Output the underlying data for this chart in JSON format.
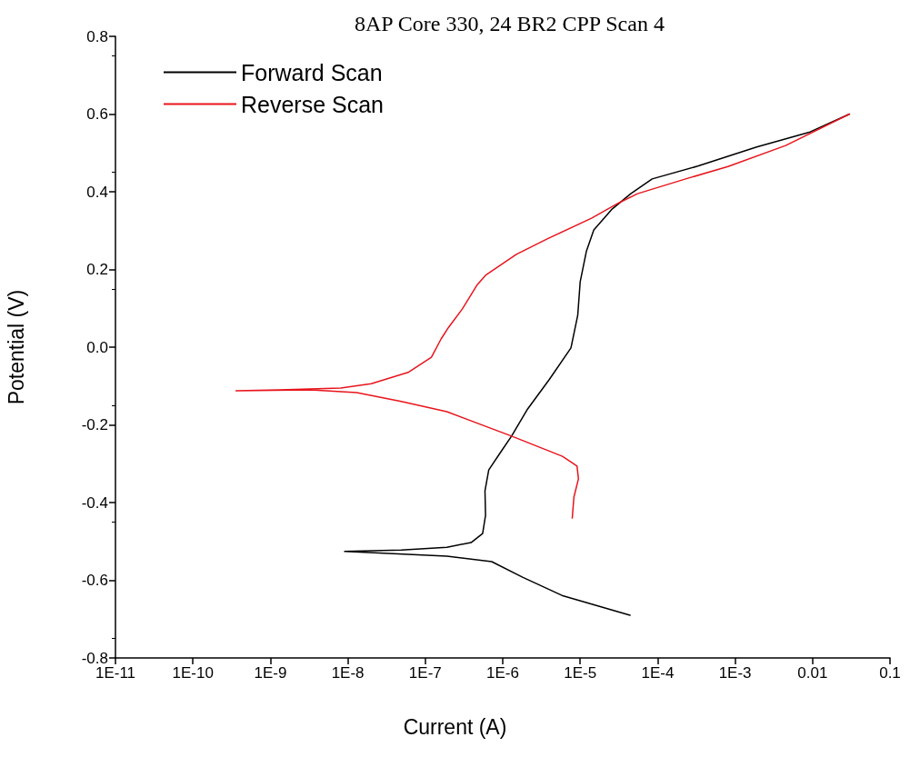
{
  "chart_data": {
    "type": "line",
    "title": "8AP Core 330, 24 BR2 CPP Scan 4",
    "xlabel": "Current (A)",
    "ylabel": "Potential (V)",
    "log": "x",
    "grid": false,
    "legend": "top left",
    "marker": "none",
    "line_style": "solid",
    "xlim": [
      1e-11,
      0.1
    ],
    "xticks": [
      {
        "value": 1e-11,
        "label": "1E-11"
      },
      {
        "value": 1e-10,
        "label": "1E-10"
      },
      {
        "value": 1e-09,
        "label": "1E-9"
      },
      {
        "value": 1e-08,
        "label": "1E-8"
      },
      {
        "value": 1e-07,
        "label": "1E-7"
      },
      {
        "value": 1e-06,
        "label": "1E-6"
      },
      {
        "value": 1e-05,
        "label": "1E-5"
      },
      {
        "value": 0.0001,
        "label": "1E-4"
      },
      {
        "value": 0.001,
        "label": "1E-3"
      },
      {
        "value": 0.01,
        "label": "0.01"
      },
      {
        "value": 0.1,
        "label": "0.1"
      }
    ],
    "ylim": [
      -0.8,
      0.8
    ],
    "yticks": [
      -0.8,
      -0.6,
      -0.4,
      -0.2,
      {
        "value": 0,
        "label": "0.0"
      },
      0.2,
      0.4,
      0.6,
      0.8
    ],
    "series": [
      {
        "name": "Forward Scan",
        "color": "#000000",
        "x": [
          4.4e-05,
          5.8e-06,
          1.8e-06,
          7.2e-07,
          1.9e-07,
          9.1e-09,
          4.9e-08,
          1.9e-07,
          3.9e-07,
          5.5e-07,
          6e-07,
          5.9e-07,
          6.6e-07,
          9.5e-07,
          1.3e-06,
          2.1e-06,
          4e-06,
          7.6e-06,
          9.3e-06,
          1e-05,
          1.2e-05,
          1.5e-05,
          2.6e-05,
          4.5e-05,
          8.5e-05,
          0.00033,
          0.0019,
          0.0093,
          0.03
        ],
        "values": [
          -0.69,
          -0.639,
          -0.592,
          -0.552,
          -0.538,
          -0.526,
          -0.522,
          -0.515,
          -0.503,
          -0.48,
          -0.433,
          -0.37,
          -0.316,
          -0.269,
          -0.229,
          -0.159,
          -0.083,
          -0.002,
          0.082,
          0.168,
          0.246,
          0.302,
          0.356,
          0.395,
          0.433,
          0.466,
          0.515,
          0.554,
          0.6
        ]
      },
      {
        "name": "Reverse Scan",
        "color": "#e8141c",
        "x": [
          0.03,
          0.0045,
          0.00081,
          0.00023,
          5.5e-05,
          3.2e-05,
          1.4e-05,
          3.7e-06,
          1.5e-06,
          6e-07,
          4.7e-07,
          3e-07,
          2e-07,
          1.6e-07,
          1.2e-07,
          6e-08,
          2e-08,
          8.1e-09,
          1.3e-09,
          3.6e-10,
          3.3e-09,
          1.3e-08,
          4.9e-08,
          1.9e-07,
          1.3e-06,
          5.9e-06,
          9.1e-06,
          9.5e-06,
          8.3e-06,
          7.9e-06
        ],
        "values": [
          0.6,
          0.519,
          0.465,
          0.433,
          0.395,
          0.372,
          0.332,
          0.278,
          0.239,
          0.185,
          0.161,
          0.098,
          0.051,
          0.021,
          -0.026,
          -0.065,
          -0.094,
          -0.105,
          -0.11,
          -0.112,
          -0.11,
          -0.117,
          -0.14,
          -0.166,
          -0.229,
          -0.281,
          -0.306,
          -0.339,
          -0.386,
          -0.44
        ]
      }
    ]
  }
}
